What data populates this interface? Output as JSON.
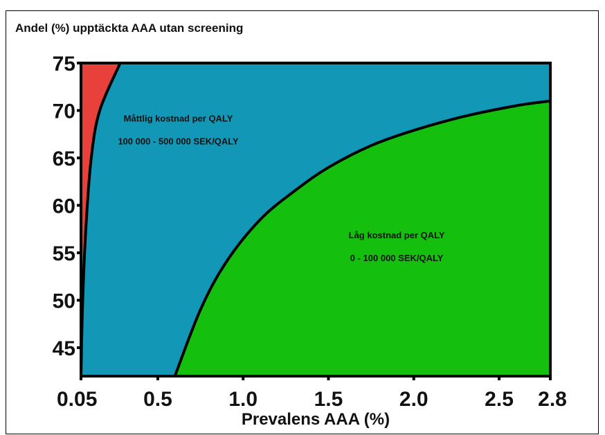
{
  "chart_data": {
    "type": "area",
    "title": "Andel (%) upptäckta AAA utan screening",
    "xlabel": "Prevalens AAA (%)",
    "ylabel": "",
    "xlim": [
      0.05,
      2.8
    ],
    "ylim": [
      42,
      75
    ],
    "x_ticks": [
      {
        "value": 0.05,
        "label": "0.05"
      },
      {
        "value": 0.5,
        "label": "0.5"
      },
      {
        "value": 1.0,
        "label": "1.0"
      },
      {
        "value": 1.5,
        "label": "1.5"
      },
      {
        "value": 2.0,
        "label": "2.0"
      },
      {
        "value": 2.5,
        "label": "2.5"
      },
      {
        "value": 2.8,
        "label": "2.8"
      }
    ],
    "y_ticks": [
      {
        "value": 75,
        "label": "75"
      },
      {
        "value": 70,
        "label": "70"
      },
      {
        "value": 65,
        "label": "65"
      },
      {
        "value": 60,
        "label": "60"
      },
      {
        "value": 55,
        "label": "55"
      },
      {
        "value": 50,
        "label": "50"
      },
      {
        "value": 45,
        "label": "45"
      }
    ],
    "boundaries": [
      {
        "name": "red-blue",
        "points": [
          [
            0.05,
            42
          ],
          [
            0.06,
            50
          ],
          [
            0.08,
            58
          ],
          [
            0.11,
            65
          ],
          [
            0.16,
            70
          ],
          [
            0.28,
            75
          ]
        ]
      },
      {
        "name": "blue-green",
        "points": [
          [
            0.6,
            42
          ],
          [
            0.75,
            49
          ],
          [
            0.9,
            54
          ],
          [
            1.1,
            58.5
          ],
          [
            1.3,
            61.5
          ],
          [
            1.5,
            64
          ],
          [
            1.75,
            66.3
          ],
          [
            2.0,
            67.9
          ],
          [
            2.3,
            69.4
          ],
          [
            2.6,
            70.5
          ],
          [
            2.8,
            71
          ]
        ]
      }
    ],
    "regions": [
      {
        "name": "high-cost",
        "color": "#e8413b",
        "label_line1": "",
        "label_line2": ""
      },
      {
        "name": "moderate-cost",
        "color": "#1397b6",
        "label_line1": "Måttlig kostnad per QALY",
        "label_line2": "100 000 - 500 000 SEK/QALY",
        "label_anchor": [
          0.62,
          67.8
        ]
      },
      {
        "name": "low-cost",
        "color": "#14c00d",
        "label_line1": "Låg kostnad per QALY",
        "label_line2": "0 - 100 000 SEK/QALY",
        "label_anchor": [
          1.9,
          55.5
        ]
      }
    ],
    "grid": false,
    "legend": "none"
  }
}
